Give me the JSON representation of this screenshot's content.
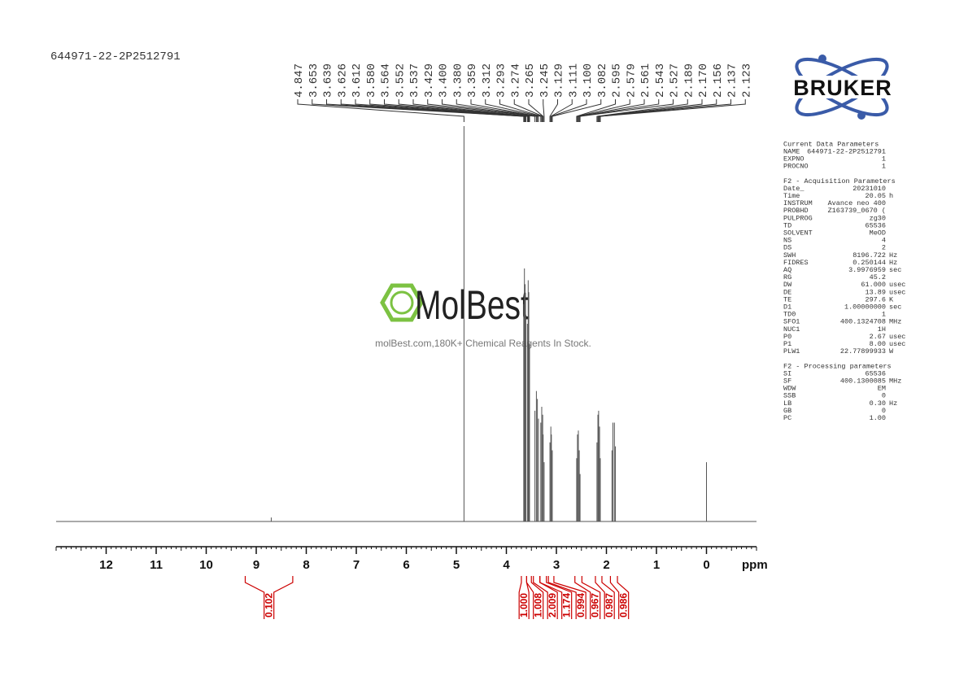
{
  "chart_data": {
    "type": "spectrum",
    "title": "644971-22-2P2512791",
    "x_label": "ppm",
    "xlim": [
      13,
      -1
    ],
    "xticks": [
      12,
      11,
      10,
      9,
      8,
      7,
      6,
      5,
      4,
      3,
      2,
      1,
      0
    ],
    "xminor": 0.1,
    "ylim": [
      0,
      100
    ],
    "color": "#555555",
    "x": [
      8.7,
      4.847,
      3.653,
      3.639,
      3.626,
      3.612,
      3.58,
      3.564,
      3.552,
      3.537,
      3.429,
      3.4,
      3.38,
      3.359,
      3.312,
      3.293,
      3.274,
      3.265,
      3.245,
      3.129,
      3.111,
      3.1,
      3.082,
      2.595,
      2.579,
      2.561,
      2.543,
      2.527,
      2.189,
      2.17,
      2.156,
      2.137,
      2.123,
      1.89,
      1.87,
      1.84,
      1.82,
      0
    ],
    "y": [
      1,
      100,
      55,
      64,
      60,
      52,
      50,
      61,
      58,
      45,
      28,
      33,
      31,
      26,
      25,
      29,
      27,
      22,
      15,
      20,
      24,
      22,
      18,
      16,
      22,
      23,
      18,
      12,
      20,
      27,
      28,
      24,
      16,
      18,
      25,
      25,
      19,
      15
    ],
    "peak_labels": [
      4.847,
      3.653,
      3.639,
      3.626,
      3.612,
      {
        "value": 3.58,
        "label": "3.580"
      },
      3.564,
      3.552,
      3.537,
      3.429,
      {
        "value": 3.4,
        "label": "3.400"
      },
      {
        "value": 3.38,
        "label": "3.380"
      },
      3.359,
      3.312,
      3.293,
      3.274,
      3.265,
      3.245,
      3.129,
      3.111,
      {
        "value": 3.1,
        "label": "3.100"
      },
      3.082,
      2.595,
      2.579,
      2.561,
      2.543,
      2.527,
      2.189,
      {
        "value": 2.17,
        "label": "2.170"
      },
      2.156,
      2.137,
      2.123
    ],
    "integrals": {
      "color": "#cc0000",
      "ranges": [
        [
          9.22,
          8.27
        ],
        [
          3.7,
          3.595
        ],
        [
          3.595,
          3.5
        ],
        [
          3.46,
          3.33
        ],
        [
          3.33,
          3.2
        ],
        [
          3.16,
          3.05
        ],
        [
          2.63,
          2.49
        ],
        [
          2.22,
          2.09
        ],
        [
          1.92,
          1.78
        ]
      ],
      "values": [
        0.102,
        {
          "value": 1,
          "label": "1.000"
        },
        1.008,
        2.009,
        1.174,
        0.994,
        0.967,
        0.987,
        0.986
      ]
    }
  },
  "watermark": {
    "brand": "MolBest",
    "tagline": "molBest.com,180K+ Chemical Reagents In Stock."
  },
  "logo": "BRUKER",
  "parameters": [
    {
      "title": "Current Data Parameters",
      "rows": [
        [
          "NAME",
          "644971-22-2P2512791",
          ""
        ],
        [
          "EXPNO",
          "1",
          ""
        ],
        [
          "PROCNO",
          "1",
          ""
        ]
      ]
    },
    {
      "title": "F2 - Acquisition Parameters",
      "rows": [
        [
          "Date_",
          "20231010",
          ""
        ],
        [
          "Time",
          "20.05",
          "h"
        ],
        [
          "INSTRUM",
          "Avance neo 400",
          ""
        ],
        [
          "PROBHD",
          "Z163739_0670 (",
          ""
        ],
        [
          "PULPROG",
          "zg30",
          ""
        ],
        [
          "TD",
          "65536",
          ""
        ],
        [
          "SOLVENT",
          "MeOD",
          ""
        ],
        [
          "NS",
          "4",
          ""
        ],
        [
          "DS",
          "2",
          ""
        ],
        [
          "SWH",
          "8196.722",
          "Hz"
        ],
        [
          "FIDRES",
          "0.250144",
          "Hz"
        ],
        [
          "AQ",
          "3.9976959",
          "sec"
        ],
        [
          "RG",
          "45.2",
          ""
        ],
        [
          "DW",
          "61.000",
          "usec"
        ],
        [
          "DE",
          "13.89",
          "usec"
        ],
        [
          "TE",
          "297.6",
          "K"
        ],
        [
          "D1",
          "1.00000000",
          "sec"
        ],
        [
          "TD0",
          "1",
          ""
        ],
        [
          "SFO1",
          "400.1324708",
          "MHz"
        ],
        [
          "NUC1",
          "1H",
          ""
        ],
        [
          "P0",
          "2.67",
          "usec"
        ],
        [
          "P1",
          "8.00",
          "usec"
        ],
        [
          "PLW1",
          "22.77899933",
          "W"
        ]
      ]
    },
    {
      "title": "F2 - Processing parameters",
      "rows": [
        [
          "SI",
          "65536",
          ""
        ],
        [
          "SF",
          "400.1300085",
          "MHz"
        ],
        [
          "WDW",
          "EM",
          ""
        ],
        [
          "SSB",
          "0",
          ""
        ],
        [
          "LB",
          "0.30",
          "Hz"
        ],
        [
          "GB",
          "0",
          ""
        ],
        [
          "PC",
          "1.00",
          ""
        ]
      ]
    }
  ]
}
